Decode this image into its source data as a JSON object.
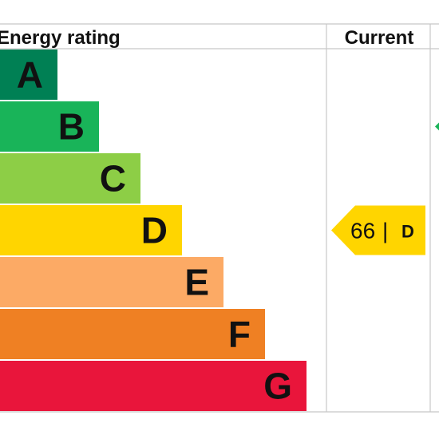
{
  "chart_data": {
    "type": "bar",
    "columns": {
      "rating_label": "Energy rating",
      "current_label": "Current"
    },
    "bands": [
      {
        "letter": "A",
        "color": "#008054"
      },
      {
        "letter": "B",
        "color": "#19b459"
      },
      {
        "letter": "C",
        "color": "#8dce46"
      },
      {
        "letter": "D",
        "color": "#ffd500"
      },
      {
        "letter": "E",
        "color": "#fcaa65"
      },
      {
        "letter": "F",
        "color": "#ef8023"
      },
      {
        "letter": "G",
        "color": "#e9153b"
      }
    ],
    "current": {
      "score": "66",
      "separator": "|",
      "band": "D",
      "color": "#ffd500"
    },
    "potential": {
      "band": "B",
      "color": "#19b459"
    }
  }
}
